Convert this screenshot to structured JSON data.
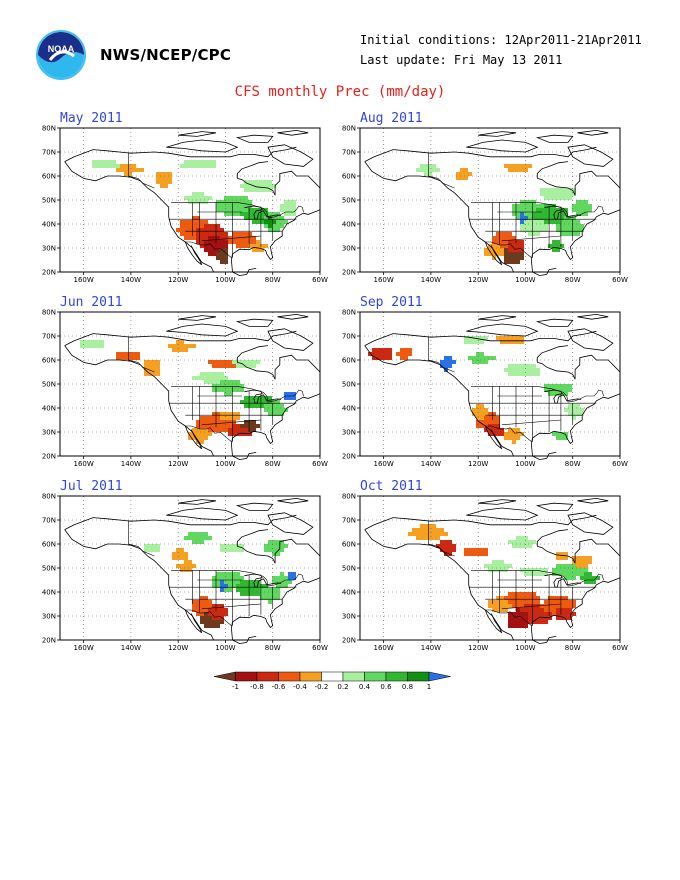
{
  "header": {
    "agency": "NWS/NCEP/CPC",
    "logo_text": "NOAA",
    "initial_conditions": "Initial conditions: 12Apr2011-21Apr2011",
    "last_update": "Last update: Fri May 13 2011",
    "title": "CFS monthly Prec (mm/day)"
  },
  "axes": {
    "lat_labels": [
      "80N",
      "70N",
      "60N",
      "50N",
      "40N",
      "30N",
      "20N"
    ],
    "lon_labels": [
      "160W",
      "140W",
      "120W",
      "100W",
      "80W",
      "60W"
    ]
  },
  "panels": [
    {
      "title": "May 2011"
    },
    {
      "title": "Aug 2011"
    },
    {
      "title": "Jun 2011"
    },
    {
      "title": "Sep 2011"
    },
    {
      "title": "Jul 2011"
    },
    {
      "title": "Oct 2011"
    }
  ],
  "colorbar": {
    "labels": [
      "-1",
      "-0.8",
      "-0.6",
      "-0.4",
      "-0.2",
      "0.2",
      "0.4",
      "0.6",
      "0.8",
      "1"
    ],
    "colors": [
      "#6e3a1e",
      "#a51010",
      "#cc2a10",
      "#ee5a10",
      "#f5a020",
      "#ffffff",
      "#a8f0a0",
      "#60d860",
      "#30b830",
      "#109010",
      "#2a70e8"
    ]
  }
}
